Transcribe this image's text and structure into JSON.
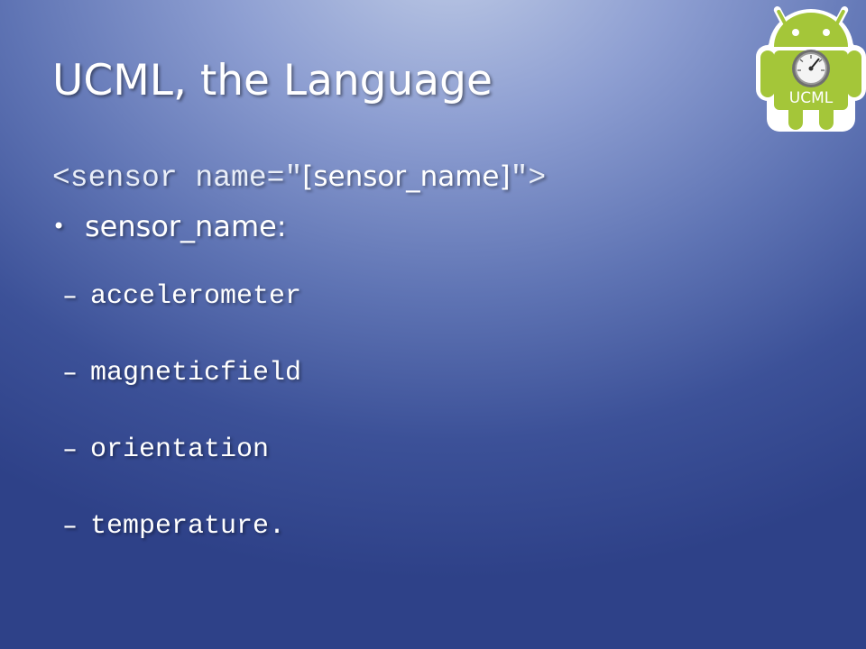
{
  "slide": {
    "title": "UCML, the Language",
    "code_line": {
      "prefix": "<sensor name=\"",
      "placeholder": "[sensor_name]",
      "suffix": "\">"
    },
    "bullet": "sensor_name:",
    "sub_items": [
      {
        "label": "accelerometer"
      },
      {
        "label": "magneticfield"
      },
      {
        "label": "orientation"
      },
      {
        "label": "temperature."
      }
    ],
    "logo": {
      "text": "UCML",
      "icon": "android-gauge-icon",
      "color": "#a4c639"
    }
  }
}
